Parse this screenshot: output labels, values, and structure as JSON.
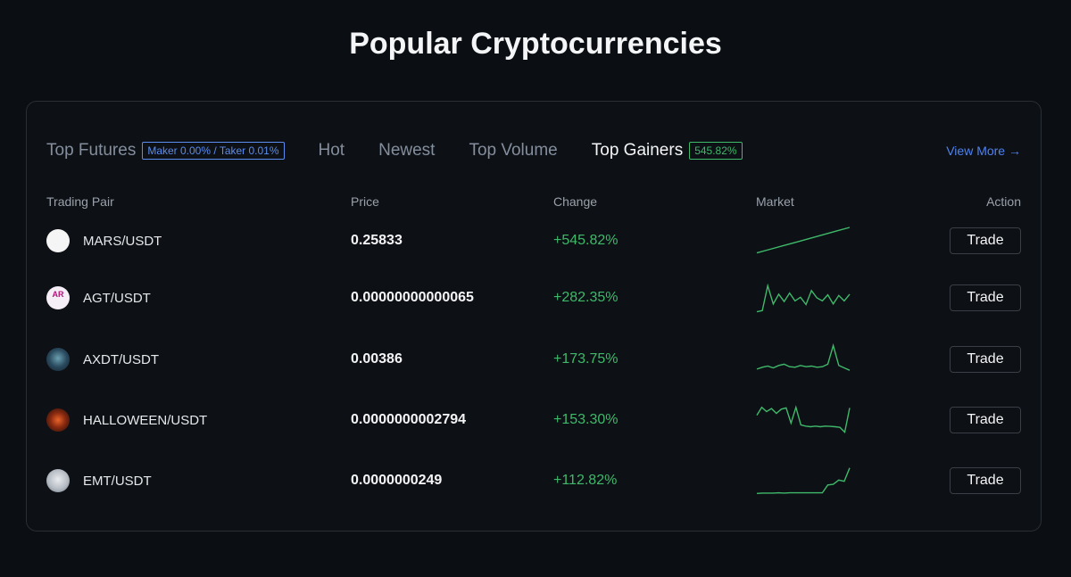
{
  "page": {
    "title": "Popular Cryptocurrencies"
  },
  "tabs": {
    "top_futures": {
      "label": "Top Futures",
      "badge": "Maker 0.00% / Taker 0.01%"
    },
    "hot": {
      "label": "Hot"
    },
    "newest": {
      "label": "Newest"
    },
    "top_volume": {
      "label": "Top Volume"
    },
    "top_gainers": {
      "label": "Top Gainers",
      "badge": "545.82%"
    },
    "active": "top_gainers"
  },
  "view_more": "View More →",
  "table": {
    "columns": {
      "pair": "Trading Pair",
      "price": "Price",
      "change": "Change",
      "market": "Market",
      "action": "Action"
    },
    "rows": [
      {
        "pair": "MARS/USDT",
        "icon": "mars-token-icon",
        "price": "0.25833",
        "change": "+545.82%",
        "action": "Trade",
        "sparkline": [
          10,
          22,
          34,
          46,
          58,
          70,
          82,
          94
        ]
      },
      {
        "pair": "AGT/USDT",
        "icon": "argon-token-icon",
        "price": "0.00000000000065",
        "change": "+282.35%",
        "action": "Trade",
        "sparkline": [
          4,
          8,
          90,
          30,
          62,
          38,
          66,
          40,
          52,
          28,
          74,
          50,
          40,
          60,
          30,
          58,
          40,
          62
        ]
      },
      {
        "pair": "AXDT/USDT",
        "icon": "axdt-token-icon",
        "price": "0.00386",
        "change": "+173.75%",
        "action": "Trade",
        "sparkline": [
          18,
          24,
          28,
          22,
          30,
          34,
          26,
          24,
          30,
          26,
          28,
          24,
          26,
          34,
          96,
          30,
          22,
          14
        ]
      },
      {
        "pair": "HALLOWEEN/USDT",
        "icon": "halloween-token-icon",
        "price": "0.0000000002794",
        "change": "+153.30%",
        "action": "Trade",
        "sparkline": [
          66,
          92,
          78,
          88,
          72,
          86,
          90,
          40,
          92,
          34,
          30,
          28,
          30,
          28,
          30,
          29,
          28,
          26,
          10,
          90
        ]
      },
      {
        "pair": "EMT/USDT",
        "icon": "emt-token-icon",
        "price": "0.0000000249",
        "change": "+112.82%",
        "action": "Trade",
        "sparkline": [
          8,
          9,
          9,
          9,
          10,
          9,
          10,
          10,
          10,
          10,
          10,
          10,
          10,
          36,
          38,
          52,
          48,
          92
        ]
      }
    ]
  },
  "colors": {
    "background": "#0b0e13",
    "positive": "#3fb96a",
    "link": "#4d83f0",
    "maker_badge": "#5b8def"
  }
}
